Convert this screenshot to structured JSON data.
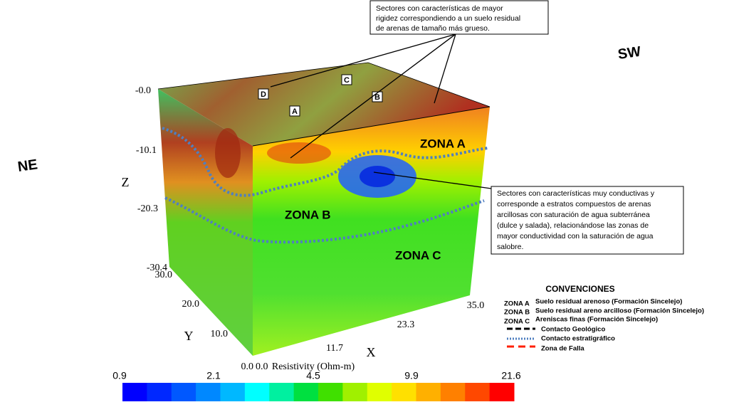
{
  "orientation": {
    "left": "NE",
    "right": "SW"
  },
  "callouts": [
    {
      "lines": [
        "Sectores  con  características  de  mayor",
        "rigidez correspondiendo a un suelo residual",
        "de arenas de tamaño más grueso."
      ]
    },
    {
      "lines": [
        "Sectores con características muy conductivas y",
        "corresponde a  estratos compuestos de arenas",
        "arcillosas con saturación de  agua subterránea",
        "(dulce y salada), relacionándose las zonas de",
        "mayor conductividad con la saturación de agua",
        "salobre."
      ]
    }
  ],
  "markers": [
    "A",
    "B",
    "C",
    "D"
  ],
  "zones": [
    "ZONA A",
    "ZONA B",
    "ZONA C"
  ],
  "axes": {
    "z": {
      "label": "Z",
      "ticks": [
        "-0.0",
        "-10.1",
        "-20.3",
        "-30.4"
      ]
    },
    "y": {
      "label": "Y",
      "ticks": [
        "30.0",
        "20.0",
        "10.0",
        "0.0"
      ]
    },
    "x": {
      "label": "X",
      "ticks": [
        "0.0",
        "11.7",
        "23.3",
        "35.0"
      ]
    }
  },
  "colorbar": {
    "title": "Resistivity (Ohm-m)",
    "ticks": [
      "0.9",
      "2.1",
      "4.5",
      "9.9",
      "21.6"
    ]
  },
  "legend": {
    "title": "CONVENCIONES",
    "zones": [
      {
        "code": "ZONA A",
        "desc": "Suelo residual arenoso (Formación Sincelejo)"
      },
      {
        "code": "ZONA B",
        "desc": "Suelo residual areno arcilloso (Formación Sincelejo)"
      },
      {
        "code": "ZONA C",
        "desc": "Areniscas finas (Formación Sincelejo)"
      }
    ],
    "lines": [
      "Contacto Geológico",
      "Contacto estratigráfico",
      "Zona de Falla"
    ]
  }
}
